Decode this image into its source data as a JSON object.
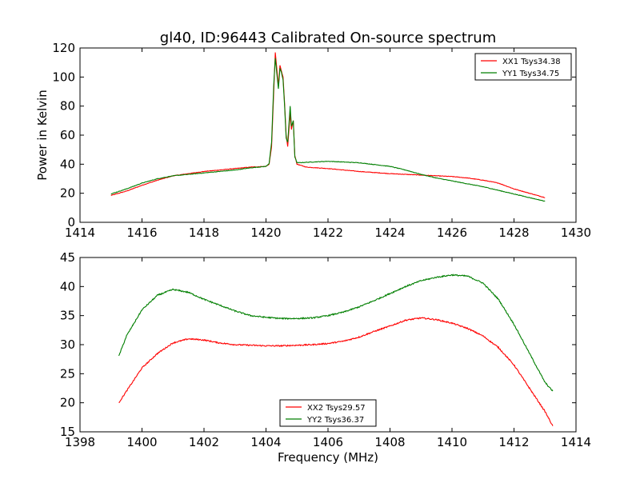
{
  "title": "gl40, ID:96443 Calibrated On-source spectrum",
  "colors": {
    "red": "#ff0000",
    "green": "#007f00",
    "axis": "#000000",
    "background": "#ffffff"
  },
  "chart_data": [
    {
      "type": "line",
      "panel": "top",
      "title": "gl40, ID:96443 Calibrated On-source spectrum",
      "xlabel": "",
      "ylabel": "Power in Kelvin",
      "xlim": [
        1414,
        1430
      ],
      "ylim": [
        0,
        120
      ],
      "xticks": [
        "1414",
        "1416",
        "1418",
        "1420",
        "1422",
        "1424",
        "1426",
        "1428",
        "1430"
      ],
      "yticks": [
        "0",
        "20",
        "40",
        "60",
        "80",
        "100",
        "120"
      ],
      "grid": false,
      "legend": "top-right",
      "series": [
        {
          "name": "XX1 Tsys34.38",
          "color": "#ff0000",
          "points": [
            [
              1415.0,
              18.5
            ],
            [
              1415.5,
              21.5
            ],
            [
              1416.0,
              25.5
            ],
            [
              1416.5,
              29.0
            ],
            [
              1417.0,
              32.0
            ],
            [
              1417.5,
              33.5
            ],
            [
              1418.0,
              35.0
            ],
            [
              1418.5,
              36.0
            ],
            [
              1419.0,
              37.0
            ],
            [
              1419.5,
              38.0
            ],
            [
              1420.0,
              38.5
            ],
            [
              1420.1,
              40.0
            ],
            [
              1420.18,
              52.0
            ],
            [
              1420.25,
              90.0
            ],
            [
              1420.3,
              117.0
            ],
            [
              1420.36,
              103.0
            ],
            [
              1420.4,
              94.0
            ],
            [
              1420.45,
              108.0
            ],
            [
              1420.5,
              104.0
            ],
            [
              1420.55,
              100.0
            ],
            [
              1420.6,
              82.0
            ],
            [
              1420.65,
              60.0
            ],
            [
              1420.7,
              52.0
            ],
            [
              1420.78,
              75.0
            ],
            [
              1420.82,
              64.0
            ],
            [
              1420.88,
              70.0
            ],
            [
              1420.93,
              46.0
            ],
            [
              1421.0,
              40.0
            ],
            [
              1421.3,
              38.0
            ],
            [
              1422.0,
              37.0
            ],
            [
              1423.0,
              35.0
            ],
            [
              1424.0,
              33.5
            ],
            [
              1425.0,
              32.5
            ],
            [
              1425.5,
              32.0
            ],
            [
              1426.0,
              31.5
            ],
            [
              1426.5,
              30.5
            ],
            [
              1427.0,
              29.0
            ],
            [
              1427.5,
              27.0
            ],
            [
              1428.0,
              23.0
            ],
            [
              1428.5,
              20.0
            ],
            [
              1429.0,
              17.0
            ]
          ]
        },
        {
          "name": "YY1 Tsys34.75",
          "color": "#007f00",
          "points": [
            [
              1415.0,
              19.5
            ],
            [
              1415.5,
              23.0
            ],
            [
              1416.0,
              27.0
            ],
            [
              1416.5,
              30.0
            ],
            [
              1417.0,
              32.0
            ],
            [
              1417.5,
              33.0
            ],
            [
              1418.0,
              34.0
            ],
            [
              1418.5,
              35.0
            ],
            [
              1419.0,
              36.0
            ],
            [
              1419.5,
              37.5
            ],
            [
              1420.0,
              38.5
            ],
            [
              1420.1,
              40.5
            ],
            [
              1420.18,
              55.0
            ],
            [
              1420.25,
              95.0
            ],
            [
              1420.3,
              113.0
            ],
            [
              1420.36,
              100.0
            ],
            [
              1420.4,
              92.0
            ],
            [
              1420.45,
              106.0
            ],
            [
              1420.5,
              103.0
            ],
            [
              1420.55,
              98.0
            ],
            [
              1420.6,
              80.0
            ],
            [
              1420.65,
              58.0
            ],
            [
              1420.7,
              55.0
            ],
            [
              1420.78,
              80.0
            ],
            [
              1420.82,
              66.0
            ],
            [
              1420.88,
              70.0
            ],
            [
              1420.93,
              45.0
            ],
            [
              1421.0,
              41.0
            ],
            [
              1421.5,
              41.5
            ],
            [
              1422.0,
              42.0
            ],
            [
              1423.0,
              41.0
            ],
            [
              1424.0,
              38.5
            ],
            [
              1424.5,
              36.0
            ],
            [
              1425.0,
              33.0
            ],
            [
              1425.5,
              30.5
            ],
            [
              1426.0,
              28.5
            ],
            [
              1426.5,
              26.5
            ],
            [
              1427.0,
              24.5
            ],
            [
              1427.5,
              22.0
            ],
            [
              1428.0,
              19.5
            ],
            [
              1428.5,
              17.0
            ],
            [
              1429.0,
              14.5
            ]
          ]
        }
      ]
    },
    {
      "type": "line",
      "panel": "bottom",
      "title": "",
      "xlabel": "Frequency (MHz)",
      "ylabel": "",
      "xlim": [
        1398,
        1414
      ],
      "ylim": [
        15,
        45
      ],
      "xticks": [
        "1398",
        "1400",
        "1402",
        "1404",
        "1406",
        "1408",
        "1410",
        "1412",
        "1414"
      ],
      "yticks": [
        "15",
        "20",
        "25",
        "30",
        "35",
        "40",
        "45"
      ],
      "grid": false,
      "legend": "bottom-center",
      "series": [
        {
          "name": "XX2 Tsys29.57",
          "color": "#ff0000",
          "points": [
            [
              1399.25,
              20.0
            ],
            [
              1399.5,
              22.0
            ],
            [
              1400.0,
              26.0
            ],
            [
              1400.5,
              28.5
            ],
            [
              1401.0,
              30.3
            ],
            [
              1401.5,
              31.0
            ],
            [
              1402.0,
              30.8
            ],
            [
              1402.5,
              30.3
            ],
            [
              1403.0,
              30.0
            ],
            [
              1403.5,
              29.9
            ],
            [
              1404.0,
              29.8
            ],
            [
              1404.5,
              29.8
            ],
            [
              1405.0,
              29.9
            ],
            [
              1405.5,
              30.0
            ],
            [
              1406.0,
              30.2
            ],
            [
              1406.5,
              30.6
            ],
            [
              1407.0,
              31.3
            ],
            [
              1407.5,
              32.3
            ],
            [
              1408.0,
              33.2
            ],
            [
              1408.5,
              34.2
            ],
            [
              1409.0,
              34.6
            ],
            [
              1409.5,
              34.3
            ],
            [
              1410.0,
              33.7
            ],
            [
              1410.5,
              32.8
            ],
            [
              1411.0,
              31.5
            ],
            [
              1411.5,
              29.5
            ],
            [
              1412.0,
              26.5
            ],
            [
              1412.5,
              22.5
            ],
            [
              1413.0,
              18.5
            ],
            [
              1413.25,
              16.0
            ]
          ]
        },
        {
          "name": "YY2 Tsys36.37",
          "color": "#007f00",
          "points": [
            [
              1399.25,
              28.0
            ],
            [
              1399.5,
              31.5
            ],
            [
              1400.0,
              36.0
            ],
            [
              1400.5,
              38.5
            ],
            [
              1401.0,
              39.5
            ],
            [
              1401.5,
              39.0
            ],
            [
              1402.0,
              37.8
            ],
            [
              1402.5,
              36.8
            ],
            [
              1403.0,
              35.8
            ],
            [
              1403.5,
              35.0
            ],
            [
              1404.0,
              34.7
            ],
            [
              1404.5,
              34.5
            ],
            [
              1405.0,
              34.5
            ],
            [
              1405.5,
              34.6
            ],
            [
              1406.0,
              35.0
            ],
            [
              1406.5,
              35.6
            ],
            [
              1407.0,
              36.5
            ],
            [
              1407.5,
              37.6
            ],
            [
              1408.0,
              38.8
            ],
            [
              1408.5,
              40.0
            ],
            [
              1409.0,
              41.0
            ],
            [
              1409.5,
              41.6
            ],
            [
              1410.0,
              42.0
            ],
            [
              1410.5,
              41.8
            ],
            [
              1411.0,
              40.6
            ],
            [
              1411.5,
              37.8
            ],
            [
              1412.0,
              33.5
            ],
            [
              1412.5,
              28.5
            ],
            [
              1413.0,
              23.5
            ],
            [
              1413.25,
              22.0
            ]
          ]
        }
      ]
    }
  ]
}
